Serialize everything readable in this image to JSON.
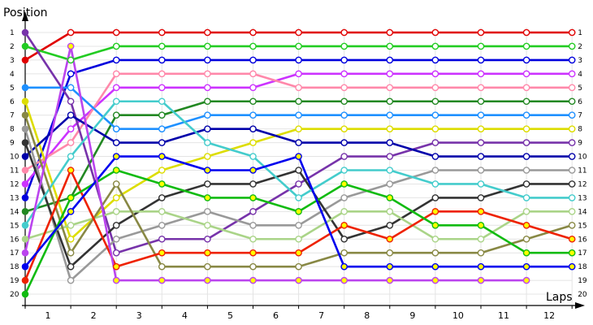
{
  "chart_data": {
    "type": "line",
    "ylabel": "Position",
    "xlabel": "Laps",
    "x_ticks": [
      "1",
      "2",
      "3",
      "4",
      "5",
      "6",
      "7",
      "8",
      "9",
      "10",
      "11",
      "12"
    ],
    "y_ticks": [
      "1",
      "2",
      "3",
      "4",
      "5",
      "6",
      "7",
      "8",
      "9",
      "10",
      "11",
      "12",
      "13",
      "14",
      "15",
      "16",
      "17",
      "18",
      "19",
      "20"
    ],
    "right_ticks": [
      "1",
      "2",
      "3",
      "4",
      "5",
      "6",
      "7",
      "8",
      "9",
      "10",
      "11",
      "12",
      "13",
      "14",
      "15",
      "16",
      "17",
      "18",
      "19",
      "20"
    ],
    "x_points": [
      0,
      1,
      2,
      3,
      4,
      5,
      6,
      7,
      8,
      9,
      10,
      11,
      12
    ],
    "ylim": [
      1,
      20
    ],
    "grid": true,
    "reversed_y": true,
    "series": [
      {
        "color": "#e00000",
        "end_marker": "#ffffff",
        "values": [
          3,
          1,
          1,
          1,
          1,
          1,
          1,
          1,
          1,
          1,
          1,
          1,
          1
        ]
      },
      {
        "color": "#22cc22",
        "end_marker": "#ffffff",
        "values": [
          2,
          3,
          2,
          2,
          2,
          2,
          2,
          2,
          2,
          2,
          2,
          2,
          2
        ]
      },
      {
        "color": "#0000dd",
        "end_marker": "#ffffff",
        "values": [
          13,
          4,
          3,
          3,
          3,
          3,
          3,
          3,
          3,
          3,
          3,
          3,
          3
        ]
      },
      {
        "color": "#cc33ff",
        "end_marker": "#ffffff",
        "values": [
          12,
          8,
          5,
          5,
          5,
          5,
          4,
          4,
          4,
          4,
          4,
          4,
          4
        ]
      },
      {
        "color": "#ff88aa",
        "end_marker": "#ffffff",
        "values": [
          11,
          9,
          4,
          4,
          4,
          4,
          5,
          5,
          5,
          5,
          5,
          5,
          5
        ]
      },
      {
        "color": "#228822",
        "end_marker": "#ffffff",
        "values": [
          14,
          13,
          7,
          7,
          6,
          6,
          6,
          6,
          6,
          6,
          6,
          6,
          6
        ]
      },
      {
        "color": "#1e90ff",
        "end_marker": "#ffffff",
        "values": [
          5,
          5,
          8,
          8,
          7,
          7,
          7,
          7,
          7,
          7,
          7,
          7,
          7
        ]
      },
      {
        "color": "#dddd00",
        "end_marker": "#ffffff",
        "values": [
          6,
          16,
          13,
          11,
          10,
          9,
          8,
          8,
          8,
          8,
          8,
          8,
          8
        ]
      },
      {
        "color": "#7733aa",
        "end_marker": "#ffffff",
        "values": [
          1,
          6,
          17,
          16,
          16,
          14,
          12,
          10,
          10,
          9,
          9,
          9,
          9
        ]
      },
      {
        "color": "#0000aa",
        "end_marker": "#ffffff",
        "values": [
          10,
          7,
          9,
          9,
          8,
          8,
          9,
          9,
          9,
          10,
          10,
          10,
          10
        ]
      },
      {
        "color": "#999999",
        "end_marker": "#ffffff",
        "values": [
          8,
          19,
          16,
          15,
          14,
          15,
          15,
          13,
          12,
          11,
          11,
          11,
          11
        ]
      },
      {
        "color": "#333333",
        "end_marker": "#ffffff",
        "values": [
          9,
          18,
          15,
          13,
          12,
          12,
          11,
          16,
          15,
          13,
          13,
          12,
          12
        ]
      },
      {
        "color": "#44cccc",
        "end_marker": "#ffffff",
        "values": [
          15,
          10,
          6,
          6,
          9,
          10,
          13,
          11,
          11,
          12,
          12,
          13,
          13
        ]
      },
      {
        "color": "#aad488",
        "end_marker": "#ffffff",
        "values": [
          16,
          15,
          14,
          14,
          15,
          16,
          16,
          14,
          14,
          16,
          16,
          14,
          14
        ]
      },
      {
        "color": "#888844",
        "end_marker": "#ffffff",
        "values": [
          7,
          17,
          12,
          18,
          18,
          18,
          18,
          17,
          17,
          17,
          17,
          16,
          15
        ]
      },
      {
        "color": "#ee2200",
        "end_marker": "#ffff00",
        "values": [
          19,
          11,
          18,
          17,
          17,
          17,
          17,
          15,
          16,
          14,
          14,
          15,
          16
        ]
      },
      {
        "color": "#11bb11",
        "end_marker": "#ffff00",
        "values": [
          20,
          13,
          11,
          12,
          13,
          13,
          14,
          12,
          13,
          15,
          15,
          17,
          17
        ]
      },
      {
        "color": "#0000ee",
        "end_marker": "#ffff00",
        "values": [
          18,
          14,
          10,
          10,
          11,
          11,
          10,
          18,
          18,
          18,
          18,
          18,
          18
        ]
      },
      {
        "color": "#bb44ee",
        "end_marker": "#ffff00",
        "values": [
          17,
          2,
          19,
          19,
          19,
          19,
          19,
          19,
          19,
          19,
          19,
          19
        ]
      }
    ]
  }
}
